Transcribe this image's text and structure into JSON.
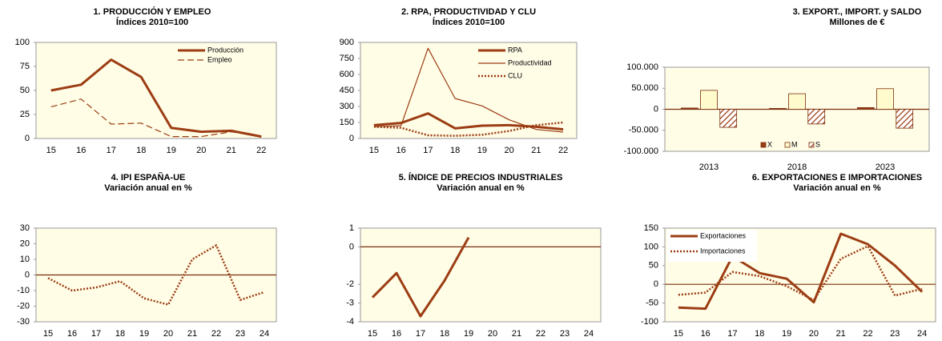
{
  "chart_data": [
    {
      "type": "line",
      "title": "1. PRODUCCIÓN Y EMPLEO",
      "subtitle": "Índices 2010=100",
      "categories": [
        "15",
        "16",
        "17",
        "18",
        "19",
        "20",
        "21",
        "22"
      ],
      "series": [
        {
          "name": "Producción",
          "color": "#9c3d14",
          "style": "thick",
          "values": [
            50,
            56,
            82,
            64,
            11,
            7,
            8,
            2
          ]
        },
        {
          "name": "Empleo",
          "color": "#9c3d14",
          "style": "dashed",
          "values": [
            33,
            41,
            15,
            16,
            2,
            2,
            7,
            2
          ]
        }
      ],
      "ylim": [
        0,
        100
      ],
      "yticks": [
        0,
        25,
        50,
        75,
        100
      ],
      "legend": "upper right"
    },
    {
      "type": "line",
      "title": "2. RPA, PRODUCTIVIDAD Y CLU",
      "subtitle": "Índices 2010=100",
      "categories": [
        "15",
        "16",
        "17",
        "18",
        "19",
        "20",
        "21",
        "22"
      ],
      "series": [
        {
          "name": "RPA",
          "color": "#9c3d14",
          "style": "thick",
          "values": [
            125,
            145,
            235,
            95,
            120,
            125,
            110,
            85
          ]
        },
        {
          "name": "Productividad",
          "color": "#9c3d14",
          "style": "thin",
          "values": [
            110,
            120,
            845,
            375,
            305,
            175,
            85,
            60
          ]
        },
        {
          "name": "CLU",
          "color": "#9c3d14",
          "style": "dotted",
          "values": [
            110,
            100,
            30,
            25,
            35,
            70,
            125,
            150
          ]
        }
      ],
      "ylim": [
        0,
        900
      ],
      "yticks": [
        0,
        150,
        300,
        450,
        600,
        750,
        900
      ],
      "legend": "upper right"
    },
    {
      "type": "bar",
      "title": "3. EXPORT., IMPORT. y SALDO",
      "subtitle": "Millones de €",
      "categories": [
        "2013",
        "2018",
        "2023"
      ],
      "series": [
        {
          "name": "X",
          "color": "#9c3d14",
          "values": [
            3000,
            2000,
            4000
          ]
        },
        {
          "name": "M",
          "color": "#fffbcc",
          "values": [
            45000,
            37000,
            49000
          ]
        },
        {
          "name": "S",
          "color": "#9c3d14",
          "pattern": "hatch",
          "values": [
            -43000,
            -35000,
            -45000
          ]
        }
      ],
      "ylim": [
        -100000,
        100000
      ],
      "yticks": [
        {
          "value": -100000,
          "label": "-100.000"
        },
        {
          "value": -50000,
          "label": "-50.000"
        },
        0,
        {
          "value": 50000,
          "label": "50.000"
        },
        {
          "value": 100000,
          "label": "100.000"
        }
      ],
      "legend": "lower center"
    },
    {
      "type": "line",
      "title": "4. IPI ESPAÑA-UE",
      "subtitle": "Variación anual en %",
      "categories": [
        "15",
        "16",
        "17",
        "18",
        "19",
        "20",
        "21",
        "22",
        "23",
        "24"
      ],
      "values": [
        -2,
        -10,
        -8,
        -4,
        -15,
        -19,
        10,
        19,
        -16,
        -11
      ],
      "color": "#9c3d14",
      "style": "dotted",
      "ylim": [
        -30,
        30
      ],
      "yticks": [
        -30,
        -20,
        -10,
        0,
        10,
        20,
        30
      ]
    },
    {
      "type": "line",
      "title": "5. ÍNDICE DE PRECIOS INDUSTRIALES",
      "subtitle": "Variación anual en %",
      "categories": [
        "15",
        "16",
        "17",
        "18",
        "19",
        "20",
        "21",
        "22",
        "23",
        "24"
      ],
      "values": [
        -2.7,
        -1.4,
        -3.7,
        -1.8,
        0.5,
        null,
        null,
        null,
        null,
        null
      ],
      "color": "#9c3d14",
      "style": "thick",
      "ylim": [
        -4,
        1
      ],
      "yticks": [
        -4,
        -3,
        -2,
        0,
        1
      ]
    },
    {
      "type": "line",
      "title": "6. EXPORTACIONES E IMPORTACIONES",
      "subtitle": "Variación anual en %",
      "categories": [
        "15",
        "16",
        "17",
        "18",
        "19",
        "20",
        "21",
        "22",
        "23",
        "24"
      ],
      "series": [
        {
          "name": "Exportaciones",
          "color": "#9c3d14",
          "style": "thick",
          "values": [
            -62,
            -65,
            75,
            30,
            15,
            -48,
            135,
            107,
            50,
            -20
          ]
        },
        {
          "name": "Importaciones",
          "color": "#9c3d14",
          "style": "dotted",
          "values": [
            -28,
            -22,
            33,
            22,
            -5,
            -42,
            68,
            102,
            -30,
            -12
          ]
        }
      ],
      "ylim": [
        -100,
        150
      ],
      "yticks": [
        -100,
        -50,
        0,
        50,
        100,
        150
      ],
      "legend": "upper left"
    }
  ]
}
